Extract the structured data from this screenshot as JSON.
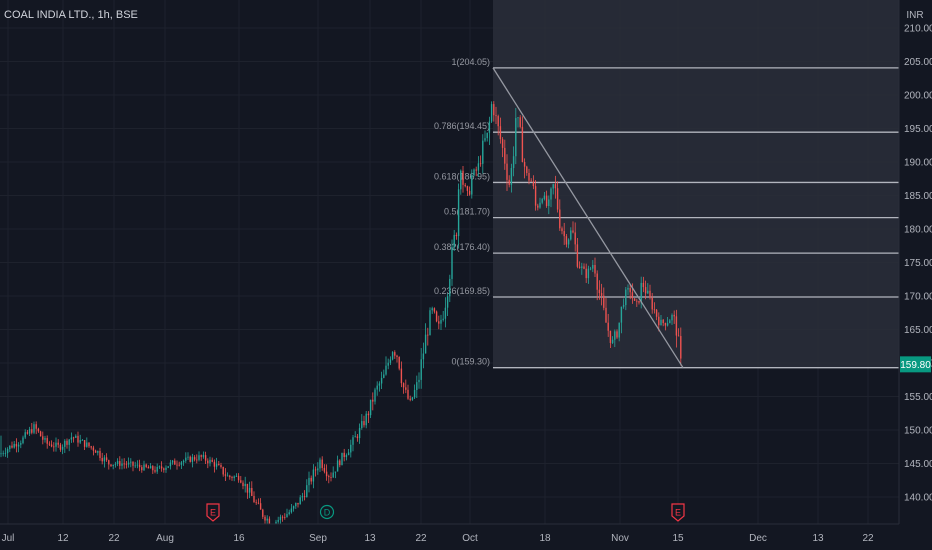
{
  "header": {
    "title": "COAL INDIA LTD., 1h, BSE"
  },
  "chart_data": {
    "type": "candlestick",
    "currency": "INR",
    "price_axis": {
      "ticks": [
        "140.00",
        "145.00",
        "150.00",
        "155.00",
        "160.00",
        "165.00",
        "170.00",
        "175.00",
        "180.00",
        "185.00",
        "190.00",
        "195.00",
        "200.00",
        "205.00",
        "210.00"
      ],
      "range": [
        135,
        212
      ],
      "last_price_label": "159.80"
    },
    "time_axis": {
      "ticks": [
        "Jul",
        "12",
        "22",
        "Aug",
        "16",
        "Sep",
        "13",
        "22",
        "Oct",
        "18",
        "Nov",
        "15",
        "Dec",
        "13",
        "22"
      ]
    },
    "fibonacci": {
      "levels": [
        {
          "label": "1(204.05)",
          "price": 204.05
        },
        {
          "label": "0.786(194.45)",
          "price": 194.45
        },
        {
          "label": "0.618(186.95)",
          "price": 186.95
        },
        {
          "label": "0.5(181.70)",
          "price": 181.7
        },
        {
          "label": "0.382(176.40)",
          "price": 176.4
        },
        {
          "label": "0.236(169.85)",
          "price": 169.85
        },
        {
          "label": "0(159.30)",
          "price": 159.3
        }
      ],
      "trend_line": {
        "from_price": 204.05,
        "to_price": 159.3
      }
    },
    "events": [
      {
        "label": "E",
        "kind": "earnings",
        "color": "#f23645"
      },
      {
        "label": "D",
        "kind": "dividend",
        "color": "#089981"
      },
      {
        "label": "E",
        "kind": "earnings",
        "color": "#f23645"
      }
    ],
    "price_path": [
      [
        0,
        146.5
      ],
      [
        10,
        147.5
      ],
      [
        22,
        148.5
      ],
      [
        34,
        150.5
      ],
      [
        46,
        148
      ],
      [
        60,
        147.5
      ],
      [
        72,
        149
      ],
      [
        84,
        148
      ],
      [
        96,
        147
      ],
      [
        108,
        145
      ],
      [
        124,
        145
      ],
      [
        140,
        144.5
      ],
      [
        156,
        144
      ],
      [
        172,
        145
      ],
      [
        186,
        145.5
      ],
      [
        200,
        146
      ],
      [
        214,
        145
      ],
      [
        228,
        143
      ],
      [
        240,
        143
      ],
      [
        252,
        140
      ],
      [
        262,
        137.5
      ],
      [
        272,
        136
      ],
      [
        282,
        137
      ],
      [
        292,
        138
      ],
      [
        302,
        140
      ],
      [
        312,
        143
      ],
      [
        320,
        145.5
      ],
      [
        330,
        143
      ],
      [
        340,
        145.5
      ],
      [
        350,
        147.5
      ],
      [
        360,
        150
      ],
      [
        368,
        152.5
      ],
      [
        376,
        156
      ],
      [
        384,
        158
      ],
      [
        392,
        162
      ],
      [
        398,
        161
      ],
      [
        404,
        156
      ],
      [
        410,
        154
      ],
      [
        418,
        157
      ],
      [
        426,
        164
      ],
      [
        432,
        168
      ],
      [
        438,
        165
      ],
      [
        444,
        168
      ],
      [
        448,
        172
      ],
      [
        452,
        176
      ],
      [
        456,
        180
      ],
      [
        460,
        190
      ],
      [
        464,
        186
      ],
      [
        468,
        185
      ],
      [
        472,
        188
      ],
      [
        478,
        189
      ],
      [
        484,
        193
      ],
      [
        488,
        194
      ],
      [
        492,
        199
      ],
      [
        498,
        195
      ],
      [
        504,
        191
      ],
      [
        510,
        186
      ],
      [
        516,
        197
      ],
      [
        520,
        194
      ],
      [
        526,
        188
      ],
      [
        532,
        187
      ],
      [
        536,
        183
      ],
      [
        542,
        185
      ],
      [
        548,
        183
      ],
      [
        554,
        187
      ],
      [
        560,
        181
      ],
      [
        566,
        178
      ],
      [
        572,
        180
      ],
      [
        578,
        175
      ],
      [
        586,
        173
      ],
      [
        594,
        175
      ],
      [
        600,
        170
      ],
      [
        606,
        166
      ],
      [
        612,
        163
      ],
      [
        618,
        165
      ],
      [
        624,
        170
      ],
      [
        630,
        171
      ],
      [
        636,
        168
      ],
      [
        642,
        172
      ],
      [
        648,
        170
      ],
      [
        654,
        168
      ],
      [
        660,
        166
      ],
      [
        666,
        166
      ],
      [
        672,
        167
      ],
      [
        676,
        166
      ],
      [
        680,
        160
      ],
      [
        682,
        159.8
      ]
    ]
  }
}
